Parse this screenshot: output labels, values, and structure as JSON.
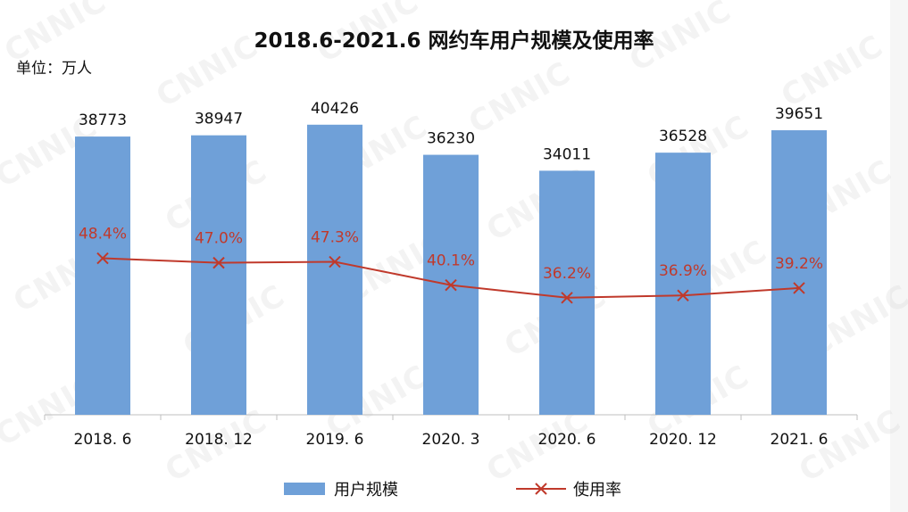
{
  "chart_data": {
    "type": "bar+line",
    "title": "2018.6-2021.6 网约车用户规模及使用率",
    "unit_label": "单位：万人",
    "categories": [
      "2018. 6",
      "2018. 12",
      "2019. 6",
      "2020. 3",
      "2020. 6",
      "2020. 12",
      "2021. 6"
    ],
    "series": [
      {
        "name": "用户规模",
        "type": "bar",
        "color": "#6fa0d8",
        "values": [
          38773,
          38947,
          40426,
          36230,
          34011,
          36528,
          39651
        ],
        "labels": [
          "38773",
          "38947",
          "40426",
          "36230",
          "34011",
          "36528",
          "39651"
        ]
      },
      {
        "name": "使用率",
        "type": "line",
        "color": "#c0392b",
        "values": [
          48.4,
          47.0,
          47.3,
          40.1,
          36.2,
          36.9,
          39.2
        ],
        "labels": [
          "48.4%",
          "47.0%",
          "47.3%",
          "40.1%",
          "36.2%",
          "36.9%",
          "39.2%"
        ]
      }
    ],
    "bar_ylim": [
      0,
      45000
    ],
    "line_ylim": [
      0,
      80
    ],
    "legend_position": "bottom"
  },
  "watermark_text": "CNNIC"
}
